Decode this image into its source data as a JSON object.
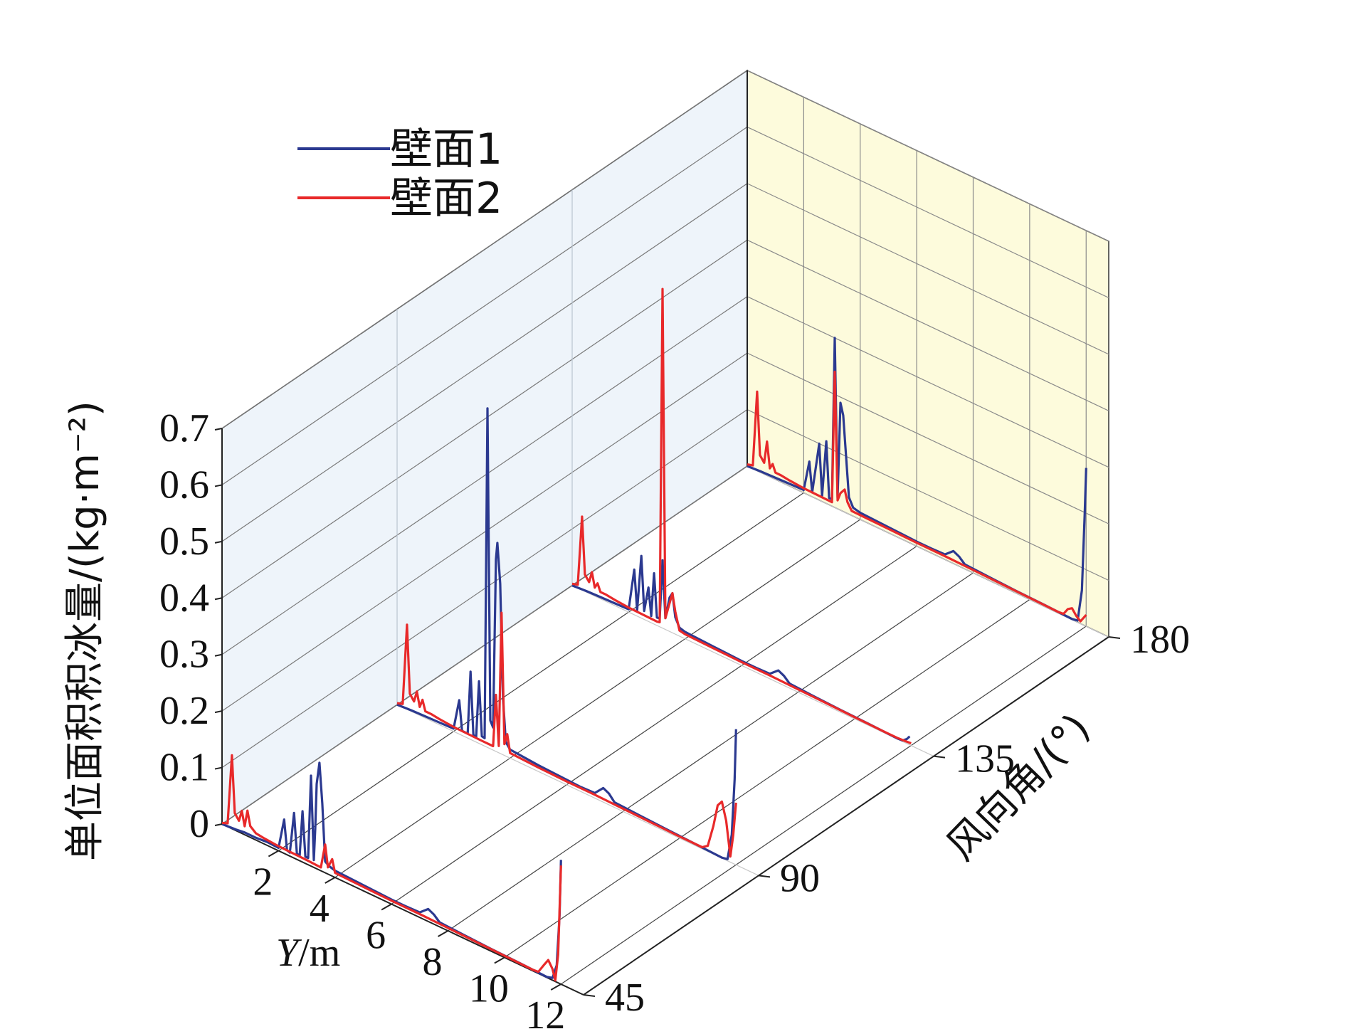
{
  "chart_data": {
    "type": "line",
    "view": "3d-waterfall",
    "zlabel": "单位面积积冰量/(kg·m⁻²)",
    "zlabel_sup": "−2",
    "xlabel_italic": "Y",
    "xlabel_rest": "/m",
    "ylabel": "风向角/(°)",
    "x_range": [
      0,
      12.8
    ],
    "z_range": [
      0,
      0.7
    ],
    "x_ticks": [
      "2",
      "4",
      "6",
      "8",
      "10",
      "12"
    ],
    "x_tick_values": [
      2,
      4,
      6,
      8,
      10,
      12
    ],
    "z_ticks": [
      "0",
      "0.1",
      "0.2",
      "0.3",
      "0.4",
      "0.5",
      "0.6",
      "0.7"
    ],
    "z_tick_values": [
      0,
      0.1,
      0.2,
      0.3,
      0.4,
      0.5,
      0.6,
      0.7
    ],
    "y_ticks": [
      "45",
      "90",
      "135",
      "180"
    ],
    "wind_angles": [
      45,
      90,
      135,
      180
    ],
    "legend": [
      {
        "name": "壁面1",
        "color": "#2b3990"
      },
      {
        "name": "壁面2",
        "color": "#e8292a"
      }
    ],
    "series": [
      {
        "name": "壁面1",
        "color": "#2b3990",
        "angle": 45,
        "points": [
          [
            0,
            0
          ],
          [
            0.5,
            0.002
          ],
          [
            0.8,
            0.004
          ],
          [
            1.2,
            0.004
          ],
          [
            1.6,
            0.006
          ],
          [
            2.0,
            0.005
          ],
          [
            2.2,
            0.06
          ],
          [
            2.3,
            0.008
          ],
          [
            2.4,
            0.006
          ],
          [
            2.55,
            0.08
          ],
          [
            2.65,
            0.01
          ],
          [
            2.75,
            0.009
          ],
          [
            2.85,
            0.09
          ],
          [
            2.95,
            0.012
          ],
          [
            3.05,
            0.012
          ],
          [
            3.15,
            0.16
          ],
          [
            3.25,
            0.013
          ],
          [
            3.3,
            0.07
          ],
          [
            3.35,
            0.15
          ],
          [
            3.45,
            0.19
          ],
          [
            3.55,
            0.12
          ],
          [
            3.65,
            0.02
          ],
          [
            3.8,
            0.015
          ],
          [
            4.0,
            0.012
          ],
          [
            5.0,
            0.01
          ],
          [
            6.0,
            0.008
          ],
          [
            6.5,
            0.008
          ],
          [
            7.0,
            0.009
          ],
          [
            7.3,
            0.022
          ],
          [
            7.5,
            0.017
          ],
          [
            7.7,
            0.008
          ],
          [
            8.5,
            0.006
          ],
          [
            9.5,
            0.004
          ],
          [
            10.5,
            0.003
          ],
          [
            11.0,
            0.002
          ],
          [
            11.5,
            0.001
          ],
          [
            11.7,
            0.004
          ],
          [
            11.85,
            0.03
          ],
          [
            11.95,
            0.12
          ],
          [
            12.0,
            0.22
          ]
        ]
      },
      {
        "name": "壁面2",
        "color": "#e8292a",
        "angle": 45,
        "points": [
          [
            0,
            0.002
          ],
          [
            0.2,
            0.006
          ],
          [
            0.35,
            0.13
          ],
          [
            0.45,
            0.03
          ],
          [
            0.6,
            0.02
          ],
          [
            0.7,
            0.04
          ],
          [
            0.8,
            0.015
          ],
          [
            0.9,
            0.045
          ],
          [
            1.0,
            0.02
          ],
          [
            1.2,
            0.012
          ],
          [
            1.5,
            0.01
          ],
          [
            2.0,
            0.008
          ],
          [
            3.0,
            0.007
          ],
          [
            3.5,
            0.006
          ],
          [
            3.65,
            0.05
          ],
          [
            3.75,
            0.012
          ],
          [
            3.9,
            0.03
          ],
          [
            4.0,
            0.008
          ],
          [
            5.0,
            0.007
          ],
          [
            6.0,
            0.006
          ],
          [
            7.0,
            0.006
          ],
          [
            8.0,
            0.005
          ],
          [
            9.0,
            0.004
          ],
          [
            10.0,
            0.003
          ],
          [
            11.0,
            0.002
          ],
          [
            11.2,
            0.003
          ],
          [
            11.4,
            0.02
          ],
          [
            11.55,
            0.032
          ],
          [
            11.7,
            0.02
          ],
          [
            11.8,
            0.002
          ],
          [
            11.9,
            0.05
          ],
          [
            12.0,
            0.21
          ]
        ]
      },
      {
        "name": "壁面1",
        "color": "#2b3990",
        "angle": 90,
        "points": [
          [
            0,
            0
          ],
          [
            0.5,
            0.002
          ],
          [
            1.0,
            0.003
          ],
          [
            1.5,
            0.004
          ],
          [
            2.0,
            0.005
          ],
          [
            2.2,
            0.06
          ],
          [
            2.3,
            0.008
          ],
          [
            2.5,
            0.008
          ],
          [
            2.6,
            0.12
          ],
          [
            2.7,
            0.01
          ],
          [
            2.8,
            0.009
          ],
          [
            2.9,
            0.11
          ],
          [
            3.0,
            0.015
          ],
          [
            3.1,
            0.014
          ],
          [
            3.2,
            0.6
          ],
          [
            3.3,
            0.05
          ],
          [
            3.4,
            0.04
          ],
          [
            3.5,
            0.34
          ],
          [
            3.55,
            0.37
          ],
          [
            3.65,
            0.3
          ],
          [
            3.75,
            0.1
          ],
          [
            3.85,
            0.025
          ],
          [
            4.0,
            0.015
          ],
          [
            5.0,
            0.011
          ],
          [
            6.0,
            0.009
          ],
          [
            6.5,
            0.008
          ],
          [
            7.0,
            0.009
          ],
          [
            7.3,
            0.025
          ],
          [
            7.5,
            0.02
          ],
          [
            7.7,
            0.009
          ],
          [
            8.5,
            0.007
          ],
          [
            9.5,
            0.005
          ],
          [
            10.5,
            0.003
          ],
          [
            11.0,
            0.002
          ],
          [
            11.5,
            0.001
          ],
          [
            11.7,
            0.003
          ],
          [
            11.85,
            0.05
          ],
          [
            11.95,
            0.15
          ],
          [
            12.0,
            0.24
          ]
        ]
      },
      {
        "name": "壁面2",
        "color": "#e8292a",
        "angle": 90,
        "points": [
          [
            0,
            0.003
          ],
          [
            0.2,
            0.006
          ],
          [
            0.35,
            0.15
          ],
          [
            0.45,
            0.03
          ],
          [
            0.6,
            0.02
          ],
          [
            0.7,
            0.04
          ],
          [
            0.8,
            0.015
          ],
          [
            0.9,
            0.03
          ],
          [
            1.0,
            0.012
          ],
          [
            1.2,
            0.012
          ],
          [
            1.5,
            0.01
          ],
          [
            2.0,
            0.008
          ],
          [
            3.0,
            0.007
          ],
          [
            3.4,
            0.007
          ],
          [
            3.5,
            0.1
          ],
          [
            3.6,
            0.012
          ],
          [
            3.7,
            0.25
          ],
          [
            3.8,
            0.02
          ],
          [
            3.9,
            0.04
          ],
          [
            4.0,
            0.009
          ],
          [
            5.0,
            0.007
          ],
          [
            6.0,
            0.006
          ],
          [
            7.0,
            0.006
          ],
          [
            8.0,
            0.005
          ],
          [
            9.0,
            0.004
          ],
          [
            10.0,
            0.003
          ],
          [
            10.8,
            0.003
          ],
          [
            11.0,
            0.01
          ],
          [
            11.2,
            0.05
          ],
          [
            11.35,
            0.09
          ],
          [
            11.5,
            0.1
          ],
          [
            11.65,
            0.07
          ],
          [
            11.8,
            0.01
          ],
          [
            11.9,
            0.05
          ],
          [
            12.0,
            0.11
          ]
        ]
      },
      {
        "name": "壁面1",
        "color": "#2b3990",
        "angle": 135,
        "points": [
          [
            0,
            0
          ],
          [
            0.5,
            0.002
          ],
          [
            1.0,
            0.003
          ],
          [
            1.5,
            0.004
          ],
          [
            2.0,
            0.005
          ],
          [
            2.2,
            0.08
          ],
          [
            2.3,
            0.01
          ],
          [
            2.45,
            0.11
          ],
          [
            2.55,
            0.015
          ],
          [
            2.7,
            0.06
          ],
          [
            2.8,
            0.012
          ],
          [
            2.9,
            0.09
          ],
          [
            3.0,
            0.014
          ],
          [
            3.1,
            0.015
          ],
          [
            3.2,
            0.12
          ],
          [
            3.3,
            0.02
          ],
          [
            3.45,
            0.06
          ],
          [
            3.55,
            0.07
          ],
          [
            3.65,
            0.03
          ],
          [
            3.8,
            0.015
          ],
          [
            4.0,
            0.012
          ],
          [
            5.0,
            0.01
          ],
          [
            6.0,
            0.008
          ],
          [
            6.5,
            0.008
          ],
          [
            7.0,
            0.009
          ],
          [
            7.3,
            0.022
          ],
          [
            7.5,
            0.017
          ],
          [
            7.7,
            0.008
          ],
          [
            8.5,
            0.006
          ],
          [
            9.5,
            0.004
          ],
          [
            10.5,
            0.003
          ],
          [
            11.0,
            0.002
          ],
          [
            11.5,
            0.001
          ],
          [
            11.7,
            0.002
          ],
          [
            11.85,
            0.008
          ],
          [
            11.95,
            0.015
          ]
        ]
      },
      {
        "name": "壁面2",
        "color": "#e8292a",
        "angle": 135,
        "points": [
          [
            0,
            0.003
          ],
          [
            0.2,
            0.006
          ],
          [
            0.35,
            0.13
          ],
          [
            0.45,
            0.03
          ],
          [
            0.6,
            0.02
          ],
          [
            0.7,
            0.04
          ],
          [
            0.8,
            0.015
          ],
          [
            0.9,
            0.025
          ],
          [
            1.0,
            0.012
          ],
          [
            1.2,
            0.012
          ],
          [
            1.5,
            0.01
          ],
          [
            2.0,
            0.008
          ],
          [
            3.0,
            0.007
          ],
          [
            3.1,
            0.008
          ],
          [
            3.2,
            0.6
          ],
          [
            3.3,
            0.02
          ],
          [
            3.45,
            0.05
          ],
          [
            3.55,
            0.07
          ],
          [
            3.65,
            0.04
          ],
          [
            3.8,
            0.01
          ],
          [
            4.0,
            0.008
          ],
          [
            5.0,
            0.007
          ],
          [
            6.0,
            0.006
          ],
          [
            7.0,
            0.006
          ],
          [
            8.0,
            0.005
          ],
          [
            9.0,
            0.004
          ],
          [
            10.0,
            0.003
          ],
          [
            11.0,
            0.002
          ],
          [
            11.5,
            0.002
          ],
          [
            11.8,
            0.003
          ],
          [
            12.0,
            0.004
          ]
        ]
      },
      {
        "name": "壁面1",
        "color": "#2b3990",
        "angle": 180,
        "points": [
          [
            0,
            0
          ],
          [
            0.5,
            0.002
          ],
          [
            1.0,
            0.003
          ],
          [
            1.5,
            0.004
          ],
          [
            2.0,
            0.005
          ],
          [
            2.2,
            0.06
          ],
          [
            2.3,
            0.008
          ],
          [
            2.55,
            0.1
          ],
          [
            2.65,
            0.01
          ],
          [
            2.8,
            0.11
          ],
          [
            2.9,
            0.012
          ],
          [
            3.0,
            0.012
          ],
          [
            3.1,
            0.3
          ],
          [
            3.2,
            0.02
          ],
          [
            3.3,
            0.19
          ],
          [
            3.4,
            0.17
          ],
          [
            3.5,
            0.1
          ],
          [
            3.6,
            0.03
          ],
          [
            3.75,
            0.015
          ],
          [
            4.0,
            0.012
          ],
          [
            5.0,
            0.01
          ],
          [
            6.0,
            0.008
          ],
          [
            6.5,
            0.008
          ],
          [
            7.0,
            0.009
          ],
          [
            7.3,
            0.022
          ],
          [
            7.5,
            0.017
          ],
          [
            7.7,
            0.008
          ],
          [
            8.5,
            0.006
          ],
          [
            9.5,
            0.004
          ],
          [
            10.5,
            0.003
          ],
          [
            11.0,
            0.002
          ],
          [
            11.5,
            0.001
          ],
          [
            11.7,
            0.003
          ],
          [
            11.85,
            0.06
          ],
          [
            11.95,
            0.2
          ],
          [
            12.0,
            0.28
          ]
        ]
      },
      {
        "name": "壁面2",
        "color": "#e8292a",
        "angle": 180,
        "points": [
          [
            0,
            0.003
          ],
          [
            0.2,
            0.006
          ],
          [
            0.35,
            0.14
          ],
          [
            0.45,
            0.03
          ],
          [
            0.6,
            0.02
          ],
          [
            0.7,
            0.06
          ],
          [
            0.8,
            0.015
          ],
          [
            0.9,
            0.025
          ],
          [
            1.0,
            0.012
          ],
          [
            1.2,
            0.012
          ],
          [
            1.5,
            0.01
          ],
          [
            2.0,
            0.008
          ],
          [
            3.0,
            0.007
          ],
          [
            3.1,
            0.24
          ],
          [
            3.2,
            0.015
          ],
          [
            3.3,
            0.03
          ],
          [
            3.45,
            0.04
          ],
          [
            3.55,
            0.02
          ],
          [
            3.7,
            0.008
          ],
          [
            5.0,
            0.007
          ],
          [
            6.0,
            0.006
          ],
          [
            7.0,
            0.006
          ],
          [
            8.0,
            0.005
          ],
          [
            9.0,
            0.004
          ],
          [
            10.0,
            0.003
          ],
          [
            11.0,
            0.002
          ],
          [
            11.2,
            0.003
          ],
          [
            11.35,
            0.015
          ],
          [
            11.5,
            0.02
          ],
          [
            11.65,
            0.01
          ],
          [
            11.8,
            0.004
          ],
          [
            11.9,
            0.012
          ],
          [
            12.0,
            0.02
          ]
        ]
      }
    ]
  }
}
